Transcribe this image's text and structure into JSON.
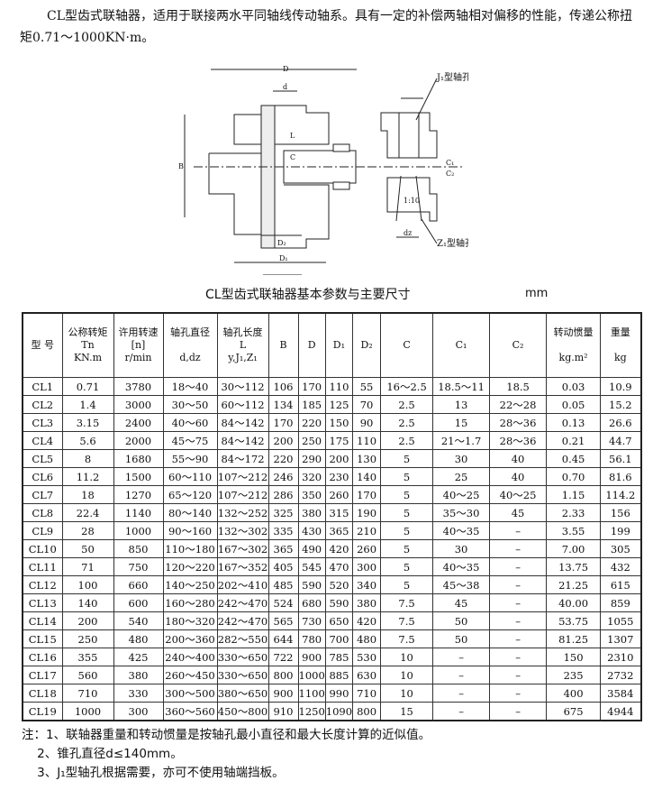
{
  "intro": "CL型齿式联轴器，适用于联接两水平同轴线传动轴系。具有一定的补偿两轴相对偏移的性能，传递公称扭矩0.71～1000KN·m。",
  "drawing": {
    "labels": {
      "D": "D",
      "d": "d",
      "B": "B",
      "L": "L",
      "C": "C",
      "D2": "D₂",
      "D1": "D₁",
      "C1": "C₁",
      "C2": "C₂",
      "dz": "dz",
      "taper": "1:10",
      "j1": "J₁型轴孔",
      "z1": "Z₁型轴孔"
    }
  },
  "table_title": "CL型齿式联轴器基本参数与主要尺寸",
  "unit": "mm",
  "headers": [
    "型 号",
    "公称转矩\nTn\nKN.m",
    "许用转速\n[n]\nr/min",
    "轴孔直径\n\nd,dz",
    "轴孔长度\nL\ny,J₁,Z₁",
    "B",
    "D",
    "D₁",
    "D₂",
    "C",
    "C₁",
    "C₂",
    "转动惯量\n\nkg.m²",
    "重量\n\nkg"
  ],
  "rows": [
    [
      "CL1",
      "0.71",
      "3780",
      "18～40",
      "30～112",
      "106",
      "170",
      "110",
      "55",
      "16～2.5",
      "18.5～11",
      "18.5",
      "0.03",
      "10.9"
    ],
    [
      "CL2",
      "1.4",
      "3000",
      "30～50",
      "60～112",
      "134",
      "185",
      "125",
      "70",
      "2.5",
      "13",
      "22～28",
      "0.05",
      "15.2"
    ],
    [
      "CL3",
      "3.15",
      "2400",
      "40～60",
      "84～142",
      "170",
      "220",
      "150",
      "90",
      "2.5",
      "15",
      "28～36",
      "0.13",
      "26.6"
    ],
    [
      "CL4",
      "5.6",
      "2000",
      "45～75",
      "84～142",
      "200",
      "250",
      "175",
      "110",
      "2.5",
      "21～1.7",
      "28～36",
      "0.21",
      "44.7"
    ],
    [
      "CL5",
      "8",
      "1680",
      "55～90",
      "84～172",
      "220",
      "290",
      "200",
      "130",
      "5",
      "30",
      "40",
      "0.45",
      "56.1"
    ],
    [
      "CL6",
      "11.2",
      "1500",
      "60～110",
      "107～212",
      "246",
      "320",
      "230",
      "140",
      "5",
      "25",
      "40",
      "0.70",
      "81.6"
    ],
    [
      "CL7",
      "18",
      "1270",
      "65～120",
      "107～212",
      "286",
      "350",
      "260",
      "170",
      "5",
      "40～25",
      "40～25",
      "1.15",
      "114.2"
    ],
    [
      "CL8",
      "22.4",
      "1140",
      "80～140",
      "132～252",
      "325",
      "380",
      "315",
      "190",
      "5",
      "35～30",
      "45",
      "2.33",
      "156"
    ],
    [
      "CL9",
      "28",
      "1000",
      "90～160",
      "132～302",
      "335",
      "430",
      "365",
      "210",
      "5",
      "40～35",
      "–",
      "3.55",
      "199"
    ],
    [
      "CL10",
      "50",
      "850",
      "110～180",
      "167～302",
      "365",
      "490",
      "420",
      "260",
      "5",
      "30",
      "–",
      "7.00",
      "305"
    ],
    [
      "CL11",
      "71",
      "750",
      "120～220",
      "167～352",
      "405",
      "545",
      "470",
      "300",
      "5",
      "40～35",
      "–",
      "13.75",
      "432"
    ],
    [
      "CL12",
      "100",
      "660",
      "140～250",
      "202～410",
      "485",
      "590",
      "520",
      "340",
      "5",
      "45～38",
      "–",
      "21.25",
      "615"
    ],
    [
      "CL13",
      "140",
      "600",
      "160～280",
      "242～470",
      "524",
      "680",
      "590",
      "380",
      "7.5",
      "45",
      "–",
      "40.00",
      "859"
    ],
    [
      "CL14",
      "200",
      "540",
      "180～320",
      "242～470",
      "565",
      "730",
      "650",
      "420",
      "7.5",
      "50",
      "–",
      "53.75",
      "1055"
    ],
    [
      "CL15",
      "250",
      "480",
      "200～360",
      "282～550",
      "644",
      "780",
      "700",
      "480",
      "7.5",
      "50",
      "–",
      "81.25",
      "1307"
    ],
    [
      "CL16",
      "355",
      "425",
      "240～400",
      "330～650",
      "722",
      "900",
      "785",
      "530",
      "10",
      "–",
      "–",
      "150",
      "2310"
    ],
    [
      "CL17",
      "560",
      "380",
      "260～450",
      "330～650",
      "800",
      "1000",
      "885",
      "630",
      "10",
      "–",
      "–",
      "235",
      "2732"
    ],
    [
      "CL18",
      "710",
      "330",
      "300～500",
      "380～650",
      "900",
      "1100",
      "990",
      "710",
      "10",
      "–",
      "–",
      "400",
      "3584"
    ],
    [
      "CL19",
      "1000",
      "300",
      "360～560",
      "450～800",
      "910",
      "1250",
      "1090",
      "800",
      "15",
      "–",
      "–",
      "675",
      "4944"
    ]
  ],
  "notes": [
    "注：1、联轴器重量和转动惯量是按轴孔最小直径和最大长度计算的近似值。",
    "    2、锥孔直径d≤140mm。",
    "    3、J₁型轴孔根据需要，亦可不使用轴端挡板。"
  ]
}
